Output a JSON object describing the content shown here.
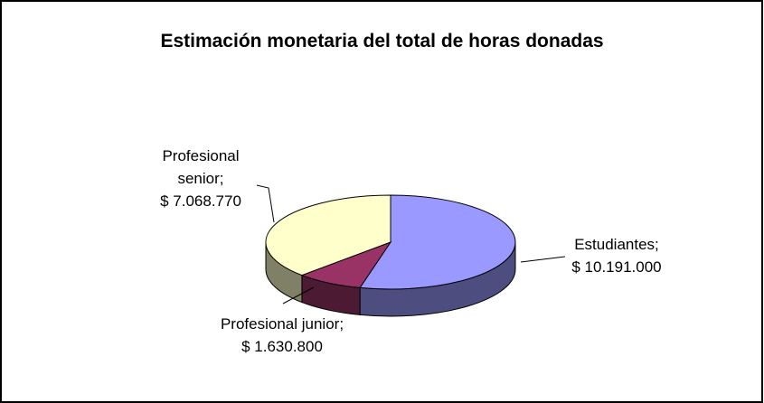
{
  "chart_data": {
    "type": "pie3d",
    "title": "Estimación monetaria del total de horas donadas",
    "categories": [
      "Estudiantes",
      "Profesional junior",
      "Profesional senior"
    ],
    "values": [
      10191000,
      1630800,
      7068770
    ],
    "value_labels": [
      "$ 10.191.000",
      "$ 1.630.800",
      "$ 7.068.770"
    ],
    "label_separator": ";",
    "colors": [
      "#9999ff",
      "#993366",
      "#ffffcc"
    ],
    "side_colors": [
      "#4d4d80",
      "#4d1a33",
      "#808066"
    ]
  }
}
